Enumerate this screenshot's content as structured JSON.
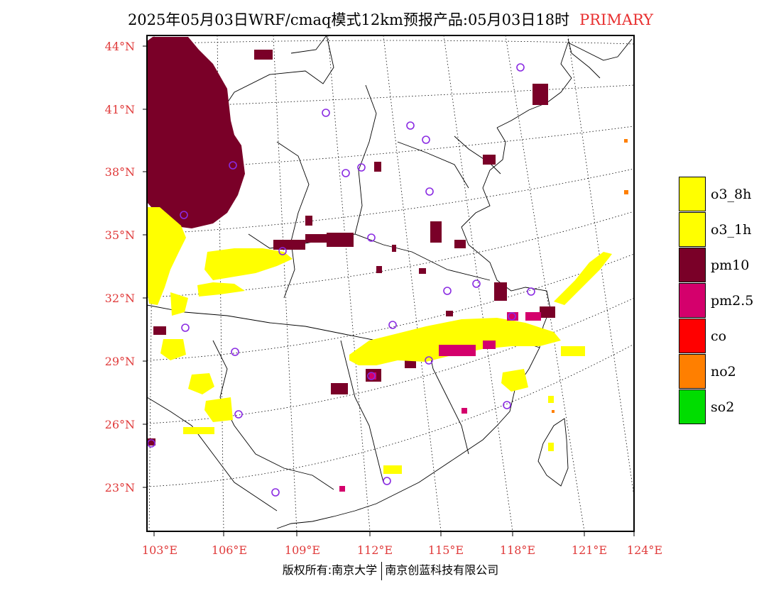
{
  "title": {
    "main": "2025年05月03日WRF/cmaq模式12km预报产品:05月03日18时",
    "tag": "PRIMARY"
  },
  "axes": {
    "lat_labels": [
      "44°N",
      "41°N",
      "38°N",
      "35°N",
      "32°N",
      "29°N",
      "26°N",
      "23°N"
    ],
    "lon_labels": [
      "103°E",
      "106°E",
      "109°E",
      "112°E",
      "115°E",
      "118°E",
      "121°E",
      "124°E"
    ]
  },
  "legend": {
    "items": [
      {
        "label": "o3_8h",
        "color": "#ffff00"
      },
      {
        "label": "o3_1h",
        "color": "#ffff00"
      },
      {
        "label": "pm10",
        "color": "#7a0028"
      },
      {
        "label": "pm2.5",
        "color": "#d4006c"
      },
      {
        "label": "co",
        "color": "#ff0000"
      },
      {
        "label": "no2",
        "color": "#ff7f00"
      },
      {
        "label": "so2",
        "color": "#00dd00"
      }
    ]
  },
  "footer": {
    "left": "版权所有:南京大学",
    "right": "南京创蓝科技有限公司"
  },
  "map": {
    "pollutant_colors": {
      "o3": "#ffff00",
      "pm10": "#7a0028",
      "pm25": "#d4006c",
      "no2": "#ff7f00"
    },
    "marker_color": "#8a2be2"
  }
}
